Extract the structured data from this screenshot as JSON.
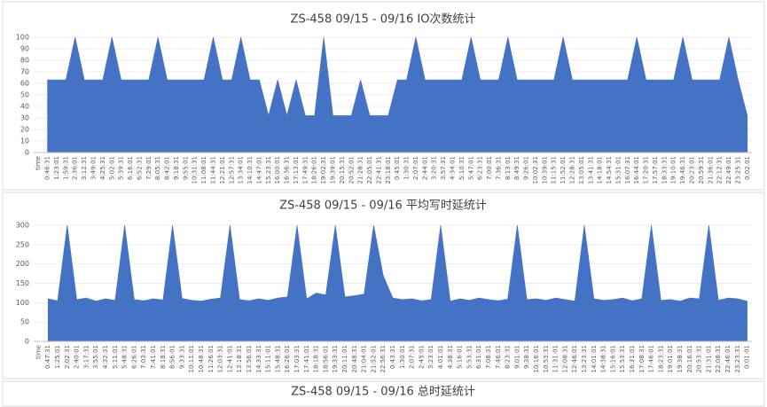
{
  "chart_data": [
    {
      "type": "area",
      "title": "ZS-458 09/15 - 09/16 IO次数统计",
      "color": "#4472c4",
      "grid": true,
      "ylim": [
        0,
        100
      ],
      "yticks": [
        0,
        10,
        20,
        30,
        40,
        50,
        60,
        70,
        80,
        90,
        100
      ],
      "categories": [
        "time",
        "0:46:31",
        "1:23:01",
        "1:59:31",
        "2:36:01",
        "3:12:31",
        "3:49:01",
        "4:25:31",
        "5:02:01",
        "5:39:31",
        "6:16:01",
        "6:52:31",
        "7:29:01",
        "8:05:31",
        "8:42:01",
        "9:18:31",
        "9:55:01",
        "10:31:31",
        "11:08:01",
        "11:44:31",
        "12:21:01",
        "12:57:31",
        "13:34:01",
        "14:10:31",
        "14:47:01",
        "15:23:31",
        "16:00:01",
        "16:36:31",
        "17:13:01",
        "17:49:31",
        "18:26:01",
        "19:02:31",
        "19:39:01",
        "20:15:31",
        "20:52:01",
        "21:28:31",
        "22:05:01",
        "22:41:31",
        "23:18:01",
        "0:45:01",
        "1:30:31",
        "2:07:01",
        "2:44:01",
        "3:20:31",
        "3:57:31",
        "4:34:01",
        "5:10:31",
        "5:47:01",
        "6:23:31",
        "7:00:01",
        "7:36:31",
        "8:13:01",
        "8:49:31",
        "9:26:01",
        "10:02:31",
        "10:39:01",
        "11:15:31",
        "11:52:01",
        "12:28:31",
        "13:05:01",
        "13:41:31",
        "14:18:01",
        "14:54:31",
        "15:31:01",
        "16:07:31",
        "16:44:01",
        "17:20:31",
        "17:57:01",
        "18:33:31",
        "19:10:01",
        "19:46:31",
        "20:23:01",
        "20:59:31",
        "21:36:01",
        "22:12:31",
        "22:49:01",
        "23:25:31",
        "0:02:01"
      ],
      "values": [
        null,
        63,
        63,
        63,
        100,
        63,
        63,
        63,
        100,
        63,
        63,
        63,
        63,
        100,
        63,
        63,
        63,
        63,
        63,
        100,
        63,
        63,
        100,
        63,
        63,
        32,
        63,
        32,
        63,
        32,
        32,
        100,
        32,
        32,
        32,
        63,
        32,
        32,
        32,
        63,
        63,
        100,
        63,
        63,
        63,
        63,
        63,
        100,
        63,
        63,
        63,
        100,
        63,
        63,
        63,
        63,
        63,
        100,
        63,
        63,
        63,
        63,
        63,
        63,
        63,
        100,
        63,
        63,
        63,
        63,
        100,
        63,
        63,
        63,
        63,
        100,
        63,
        32
      ]
    },
    {
      "type": "area",
      "title": "ZS-458 09/15 - 09/16 平均写时延统计",
      "color": "#4472c4",
      "grid": true,
      "ylim": [
        0,
        300
      ],
      "yticks": [
        0,
        50,
        100,
        150,
        200,
        250,
        300
      ],
      "categories": [
        "time",
        "0:47:31",
        "1:25:01",
        "2:02:31",
        "2:40:01",
        "3:17:31",
        "3:55:01",
        "4:32:31",
        "5:11:01",
        "5:48:31",
        "6:26:01",
        "7:03:31",
        "7:41:01",
        "8:18:31",
        "8:56:01",
        "9:33:31",
        "10:11:01",
        "10:48:31",
        "11:26:01",
        "12:03:31",
        "12:41:01",
        "13:18:31",
        "13:56:01",
        "14:33:31",
        "15:11:01",
        "15:48:31",
        "16:26:01",
        "17:03:31",
        "17:41:01",
        "18:18:31",
        "18:56:01",
        "19:33:31",
        "20:11:01",
        "20:48:31",
        "21:04:01",
        "21:52:01",
        "22:56:31",
        "0:43:31",
        "1:30:01",
        "2:07:31",
        "2:45:01",
        "3:23:01",
        "4:01:01",
        "4:38:31",
        "5:16:01",
        "5:53:31",
        "6:31:01",
        "7:08:31",
        "7:46:01",
        "8:23:31",
        "9:01:01",
        "9:38:31",
        "10:16:01",
        "10:53:31",
        "11:31:01",
        "12:08:31",
        "12:46:01",
        "13:23:31",
        "14:01:01",
        "14:38:31",
        "15:16:01",
        "15:53:31",
        "16:31:01",
        "17:08:31",
        "17:46:01",
        "18:23:31",
        "19:01:01",
        "19:38:31",
        "20:16:01",
        "20:53:31",
        "21:31:01",
        "22:08:31",
        "22:46:01",
        "23:23:31",
        "0:01:01"
      ],
      "values": [
        null,
        110,
        105,
        300,
        108,
        112,
        104,
        110,
        106,
        300,
        108,
        105,
        110,
        107,
        300,
        111,
        106,
        104,
        109,
        112,
        300,
        108,
        105,
        110,
        106,
        112,
        115,
        300,
        110,
        125,
        120,
        300,
        115,
        118,
        122,
        300,
        170,
        112,
        108,
        110,
        105,
        108,
        300,
        104,
        110,
        106,
        112,
        108,
        105,
        109,
        300,
        108,
        110,
        106,
        112,
        108,
        104,
        300,
        110,
        106,
        108,
        112,
        105,
        110,
        300,
        106,
        108,
        104,
        112,
        110,
        300,
        106,
        112,
        110,
        104
      ]
    },
    {
      "type": "area",
      "title": "ZS-458 09/15 - 09/16 总时延统计"
    }
  ]
}
